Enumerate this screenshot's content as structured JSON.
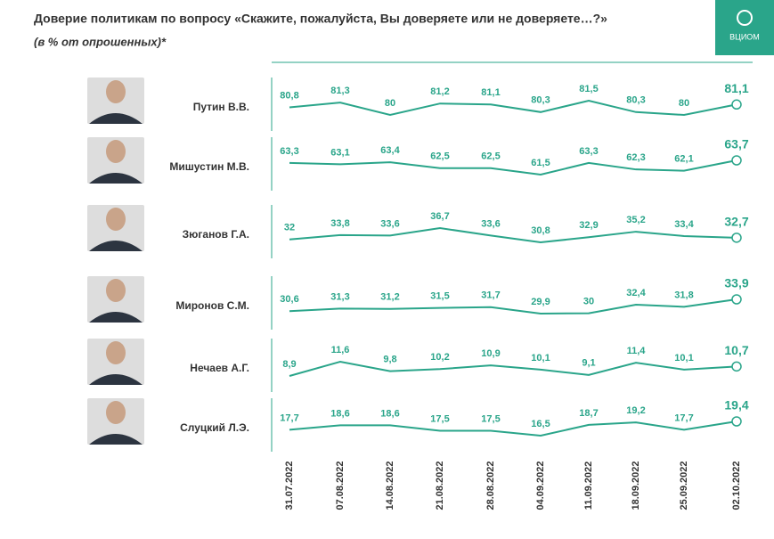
{
  "chart_data": {
    "type": "line",
    "title": "Доверие политикам по вопросу «Скажите, пожалуйста, Вы доверяете или не доверяете…?»",
    "subtitle": "(в % от опрошенных)*",
    "logo": "ВЦИОМ",
    "color": "#2aa58a",
    "categories": [
      "31.07.2022",
      "07.08.2022",
      "14.08.2022",
      "21.08.2022",
      "28.08.2022",
      "04.09.2022",
      "11.09.2022",
      "18.09.2022",
      "25.09.2022",
      "02.10.2022"
    ],
    "series": [
      {
        "name": "Путин В.В.",
        "values": [
          80.8,
          81.3,
          80,
          81.2,
          81.1,
          80.3,
          81.5,
          80.3,
          80,
          81.1
        ],
        "value_labels": [
          "80,8",
          "81,3",
          "80",
          "81,2",
          "81,1",
          "80,3",
          "81,5",
          "80,3",
          "80",
          "81,1"
        ]
      },
      {
        "name": "Мишустин М.В.",
        "values": [
          63.3,
          63.1,
          63.4,
          62.5,
          62.5,
          61.5,
          63.3,
          62.3,
          62.1,
          63.7
        ],
        "value_labels": [
          "63,3",
          "63,1",
          "63,4",
          "62,5",
          "62,5",
          "61,5",
          "63,3",
          "62,3",
          "62,1",
          "63,7"
        ]
      },
      {
        "name": "Зюганов Г.А.",
        "values": [
          32,
          33.8,
          33.6,
          36.7,
          33.6,
          30.8,
          32.9,
          35.2,
          33.4,
          32.7
        ],
        "value_labels": [
          "32",
          "33,8",
          "33,6",
          "36,7",
          "33,6",
          "30,8",
          "32,9",
          "35,2",
          "33,4",
          "32,7"
        ]
      },
      {
        "name": "Миронов С.М.",
        "values": [
          30.6,
          31.3,
          31.2,
          31.5,
          31.7,
          29.9,
          30,
          32.4,
          31.8,
          33.9
        ],
        "value_labels": [
          "30,6",
          "31,3",
          "31,2",
          "31,5",
          "31,7",
          "29,9",
          "30",
          "32,4",
          "31,8",
          "33,9"
        ]
      },
      {
        "name": "Нечаев А.Г.",
        "values": [
          8.9,
          11.6,
          9.8,
          10.2,
          10.9,
          10.1,
          9.1,
          11.4,
          10.1,
          10.7
        ],
        "value_labels": [
          "8,9",
          "11,6",
          "9,8",
          "10,2",
          "10,9",
          "10,1",
          "9,1",
          "11,4",
          "10,1",
          "10,7"
        ]
      },
      {
        "name": "Слуцкий Л.Э.",
        "values": [
          17.7,
          18.6,
          18.6,
          17.5,
          17.5,
          16.5,
          18.7,
          19.2,
          17.7,
          19.4
        ],
        "value_labels": [
          "17,7",
          "18,6",
          "18,6",
          "17,5",
          "17,5",
          "16,5",
          "18,7",
          "19,2",
          "17,7",
          "19,4"
        ]
      }
    ]
  }
}
